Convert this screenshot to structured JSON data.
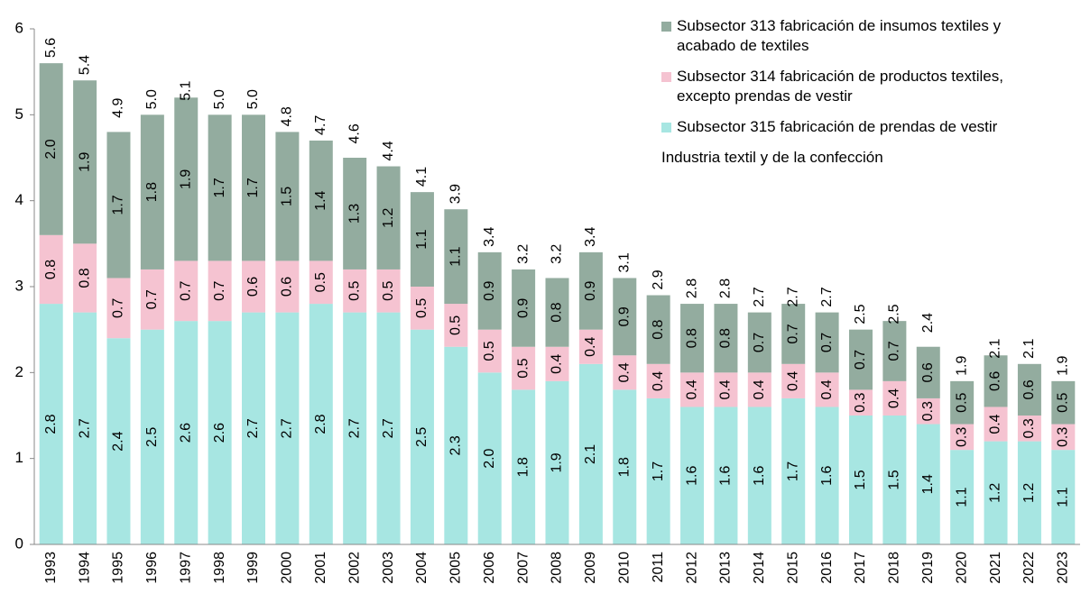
{
  "chart_data": {
    "type": "stacked_bar",
    "categories": [
      "1993",
      "1994",
      "1995",
      "1996",
      "1997",
      "1998",
      "1999",
      "2000",
      "2001",
      "2002",
      "2003",
      "2004",
      "2005",
      "2006",
      "2007",
      "2008",
      "2009",
      "2010",
      "2011",
      "2012",
      "2013",
      "2014",
      "2015",
      "2016",
      "2017",
      "2018",
      "2019",
      "2020",
      "2021",
      "2022",
      "2023"
    ],
    "series": [
      {
        "name": "Subsector 315 fabricación de prendas de vestir",
        "color": "#a7e6e2",
        "values": [
          2.8,
          2.7,
          2.4,
          2.5,
          2.6,
          2.6,
          2.7,
          2.7,
          2.8,
          2.7,
          2.7,
          2.5,
          2.3,
          2.0,
          1.8,
          1.9,
          2.1,
          1.8,
          1.7,
          1.6,
          1.6,
          1.6,
          1.7,
          1.6,
          1.5,
          1.5,
          1.4,
          1.1,
          1.2,
          1.2,
          1.1
        ],
        "value_labels": [
          "2.8",
          "2.7",
          "2.4",
          "2.5",
          "2.6",
          "2.6",
          "2.7",
          "2.7",
          "2.8",
          "2.7",
          "2.7",
          "2.5",
          "2.3",
          "2.0",
          "1.8",
          "1.9",
          "2.1",
          "1.8",
          "1.7",
          "1.6",
          "1.6",
          "1.6",
          "1.7",
          "1.6",
          "1.5",
          "1.5",
          "1.4",
          "1.1",
          "1.2",
          "1.2",
          "1.1"
        ]
      },
      {
        "name": "Subsector 314 fabricación de productos textiles, excepto prendas de vestir",
        "color": "#f5c3d1",
        "values": [
          0.8,
          0.8,
          0.7,
          0.7,
          0.7,
          0.7,
          0.6,
          0.6,
          0.5,
          0.5,
          0.5,
          0.5,
          0.5,
          0.5,
          0.5,
          0.4,
          0.4,
          0.4,
          0.4,
          0.4,
          0.4,
          0.4,
          0.4,
          0.4,
          0.3,
          0.4,
          0.3,
          0.3,
          0.4,
          0.3,
          0.3
        ],
        "value_labels": [
          "0.8",
          "0.8",
          "0.7",
          "0.7",
          "0.7",
          "0.7",
          "0.6",
          "0.6",
          "0.5",
          "0.5",
          "0.5",
          "0.5",
          "0.5",
          "0.5",
          "0.5",
          "0.4",
          "0.4",
          "0.4",
          "0.4",
          "0.4",
          "0.4",
          "0.4",
          "0.4",
          "0.4",
          "0.3",
          "0.4",
          "0.3",
          "0.3",
          "0.4",
          "0.3",
          "0.3"
        ]
      },
      {
        "name": "Subsector 313 fabricación de insumos textiles y acabado de textiles",
        "color": "#93ac9f",
        "values": [
          2.0,
          1.9,
          1.7,
          1.8,
          1.9,
          1.7,
          1.7,
          1.5,
          1.4,
          1.3,
          1.2,
          1.1,
          1.1,
          0.9,
          0.9,
          0.8,
          0.9,
          0.9,
          0.8,
          0.8,
          0.8,
          0.7,
          0.7,
          0.7,
          0.7,
          0.7,
          0.6,
          0.5,
          0.6,
          0.6,
          0.5
        ],
        "value_labels": [
          "2.0",
          "1.9",
          "1.7",
          "1.8",
          "1.9",
          "1.7",
          "1.7",
          "1.5",
          "1.4",
          "1.3",
          "1.2",
          "1.1",
          "1.1",
          "0.9",
          "0.9",
          "0.8",
          "0.9",
          "0.9",
          "0.8",
          "0.8",
          "0.8",
          "0.7",
          "0.7",
          "0.7",
          "0.7",
          "0.7",
          "0.6",
          "0.5",
          "0.6",
          "0.6",
          "0.5"
        ]
      }
    ],
    "totals": {
      "name": "Industria textil y de la confección",
      "values": [
        5.6,
        5.4,
        4.9,
        5.0,
        5.1,
        5.0,
        5.0,
        4.8,
        4.7,
        4.6,
        4.4,
        4.1,
        3.9,
        3.4,
        3.2,
        3.2,
        3.4,
        3.1,
        2.9,
        2.8,
        2.8,
        2.7,
        2.7,
        2.7,
        2.5,
        2.5,
        2.4,
        1.9,
        2.1,
        2.1,
        1.9
      ],
      "value_labels": [
        "5.6",
        "5.4",
        "4.9",
        "5.0",
        "5.1",
        "5.0",
        "5.0",
        "4.8",
        "4.7",
        "4.6",
        "4.4",
        "4.1",
        "3.9",
        "3.4",
        "3.2",
        "3.2",
        "3.4",
        "3.1",
        "2.9",
        "2.8",
        "2.8",
        "2.7",
        "2.7",
        "2.7",
        "2.5",
        "2.5",
        "2.4",
        "1.9",
        "2.1",
        "2.1",
        "1.9"
      ]
    },
    "ylim": [
      0,
      6
    ],
    "yticks": [
      0,
      1,
      2,
      3,
      4,
      5,
      6
    ],
    "grid": false,
    "legend": "upper right"
  }
}
